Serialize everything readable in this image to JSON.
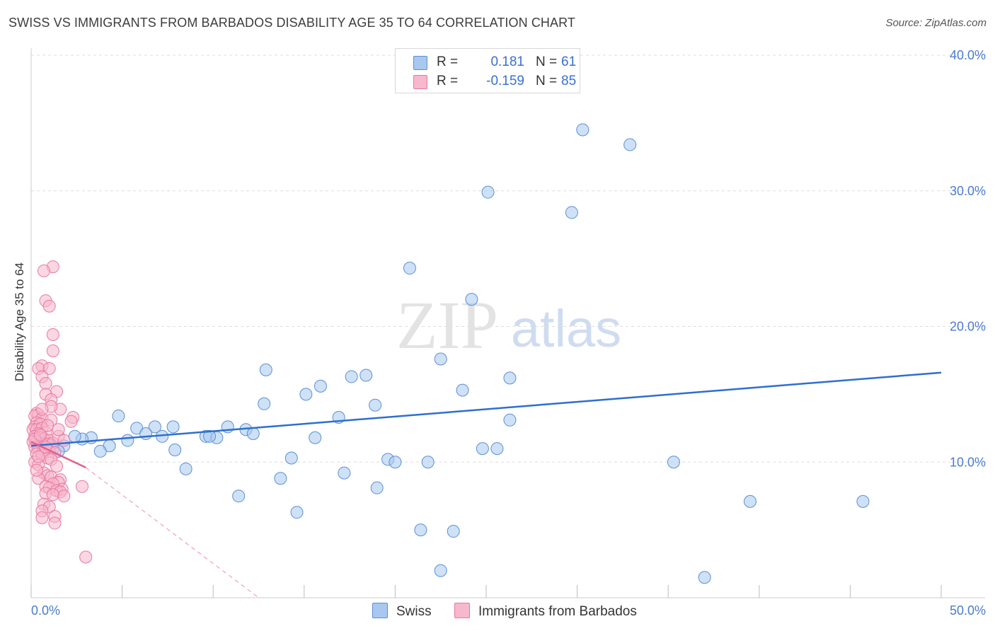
{
  "title": "SWISS VS IMMIGRANTS FROM BARBADOS DISABILITY AGE 35 TO 64 CORRELATION CHART",
  "source": "Source: ZipAtlas.com",
  "watermark": {
    "zip": "ZIP",
    "atlas": "atlas"
  },
  "colors": {
    "swiss_fill": "#a8c8f0",
    "swiss_stroke": "#5b8fd6",
    "swiss_line": "#2e6fce",
    "barbados_fill": "#f7b7cc",
    "barbados_stroke": "#e77aa0",
    "barbados_line": "#e0608c",
    "grid": "#dddddd",
    "tick_text": "#4a7bd0"
  },
  "legend": {
    "rows": [
      {
        "r_label": "R =",
        "r_value": "0.181",
        "n_label": "N =",
        "n_value": "61",
        "swatch": "#a8c8f0",
        "swatch_border": "#5b8fd6"
      },
      {
        "r_label": "R =",
        "r_value": "-0.159",
        "n_label": "N =",
        "n_value": "85",
        "swatch": "#f7b7cc",
        "swatch_border": "#e77aa0"
      }
    ]
  },
  "bottom_legend": [
    {
      "label": "Swiss",
      "swatch": "#a8c8f0",
      "swatch_border": "#5b8fd6"
    },
    {
      "label": "Immigrants from Barbados",
      "swatch": "#f7b7cc",
      "swatch_border": "#e77aa0"
    }
  ],
  "chart_data": {
    "type": "scatter",
    "title": "SWISS VS IMMIGRANTS FROM BARBADOS DISABILITY AGE 35 TO 64 CORRELATION CHART",
    "xlabel": "",
    "ylabel": "Disability Age 35 to 64",
    "xlim": [
      0,
      50
    ],
    "ylim": [
      0,
      40
    ],
    "x_tick_labels": [
      "0.0%",
      "50.0%"
    ],
    "y_ticks": [
      10,
      20,
      30,
      40
    ],
    "y_tick_labels": [
      "10.0%",
      "20.0%",
      "30.0%",
      "40.0%"
    ],
    "legend_position": "top-center",
    "series": [
      {
        "name": "Swiss",
        "r": 0.181,
        "n": 61,
        "trend": {
          "x": [
            0,
            50
          ],
          "y": [
            11.2,
            16.6
          ]
        },
        "points": [
          [
            30.3,
            34.5
          ],
          [
            32.9,
            33.4
          ],
          [
            25.1,
            29.9
          ],
          [
            29.7,
            28.4
          ],
          [
            20.8,
            24.3
          ],
          [
            24.2,
            22.0
          ],
          [
            12.9,
            16.8
          ],
          [
            17.6,
            16.3
          ],
          [
            18.4,
            16.4
          ],
          [
            22.5,
            17.6
          ],
          [
            26.3,
            16.2
          ],
          [
            15.9,
            15.6
          ],
          [
            15.1,
            15.0
          ],
          [
            23.7,
            15.3
          ],
          [
            12.8,
            14.3
          ],
          [
            18.9,
            14.2
          ],
          [
            4.8,
            13.4
          ],
          [
            16.9,
            13.3
          ],
          [
            26.3,
            13.1
          ],
          [
            7.8,
            12.6
          ],
          [
            6.8,
            12.6
          ],
          [
            5.8,
            12.5
          ],
          [
            10.8,
            12.6
          ],
          [
            11.8,
            12.4
          ],
          [
            12.2,
            12.1
          ],
          [
            6.3,
            12.1
          ],
          [
            9.6,
            11.9
          ],
          [
            10.2,
            11.8
          ],
          [
            9.8,
            11.9
          ],
          [
            3.3,
            11.8
          ],
          [
            15.6,
            11.8
          ],
          [
            7.2,
            11.9
          ],
          [
            2.8,
            11.7
          ],
          [
            5.3,
            11.6
          ],
          [
            4.3,
            11.2
          ],
          [
            3.8,
            10.8
          ],
          [
            7.9,
            10.9
          ],
          [
            24.8,
            11.0
          ],
          [
            25.6,
            11.0
          ],
          [
            14.3,
            10.3
          ],
          [
            19.6,
            10.2
          ],
          [
            20.0,
            10.0
          ],
          [
            21.8,
            10.0
          ],
          [
            35.3,
            10.0
          ],
          [
            8.5,
            9.5
          ],
          [
            17.2,
            9.2
          ],
          [
            13.7,
            8.8
          ],
          [
            19.0,
            8.1
          ],
          [
            11.4,
            7.5
          ],
          [
            14.6,
            6.3
          ],
          [
            39.5,
            7.1
          ],
          [
            45.7,
            7.1
          ],
          [
            21.4,
            5.0
          ],
          [
            23.2,
            4.9
          ],
          [
            22.5,
            2.0
          ],
          [
            37.0,
            1.5
          ],
          [
            1.2,
            11.0
          ],
          [
            2.4,
            11.9
          ],
          [
            1.8,
            11.2
          ],
          [
            0.9,
            11.4
          ],
          [
            1.5,
            10.8
          ]
        ]
      },
      {
        "name": "Immigrants from Barbados",
        "r": -0.159,
        "n": 85,
        "trend": {
          "x": [
            0,
            3.0
          ],
          "y": [
            11.5,
            9.6
          ]
        },
        "trend_dashed": {
          "x": [
            3.0,
            12.5
          ],
          "y": [
            9.6,
            0.0
          ]
        },
        "points": [
          [
            1.2,
            24.4
          ],
          [
            0.7,
            24.1
          ],
          [
            0.8,
            21.9
          ],
          [
            1.0,
            21.5
          ],
          [
            1.2,
            19.4
          ],
          [
            1.2,
            18.2
          ],
          [
            0.6,
            17.1
          ],
          [
            0.4,
            16.9
          ],
          [
            1.0,
            16.9
          ],
          [
            0.6,
            16.3
          ],
          [
            0.8,
            15.8
          ],
          [
            1.4,
            15.2
          ],
          [
            0.8,
            15.0
          ],
          [
            1.1,
            14.6
          ],
          [
            1.6,
            13.9
          ],
          [
            0.3,
            13.6
          ],
          [
            0.4,
            13.5
          ],
          [
            0.2,
            13.4
          ],
          [
            2.3,
            13.3
          ],
          [
            2.2,
            13.0
          ],
          [
            0.6,
            13.2
          ],
          [
            1.1,
            13.1
          ],
          [
            0.3,
            12.9
          ],
          [
            0.2,
            12.6
          ],
          [
            0.5,
            12.8
          ],
          [
            0.1,
            12.4
          ],
          [
            0.3,
            12.4
          ],
          [
            0.6,
            12.5
          ],
          [
            0.8,
            12.2
          ],
          [
            0.4,
            12.1
          ],
          [
            0.2,
            11.9
          ],
          [
            0.5,
            11.8
          ],
          [
            0.7,
            11.7
          ],
          [
            1.0,
            11.6
          ],
          [
            0.1,
            11.5
          ],
          [
            0.3,
            11.5
          ],
          [
            0.6,
            11.3
          ],
          [
            0.9,
            11.3
          ],
          [
            1.2,
            11.4
          ],
          [
            0.2,
            11.1
          ],
          [
            0.4,
            11.0
          ],
          [
            0.7,
            10.9
          ],
          [
            1.0,
            10.8
          ],
          [
            1.3,
            10.7
          ],
          [
            0.3,
            10.6
          ],
          [
            0.6,
            10.5
          ],
          [
            0.9,
            10.3
          ],
          [
            1.1,
            10.2
          ],
          [
            0.2,
            10.0
          ],
          [
            0.4,
            9.8
          ],
          [
            1.4,
            9.7
          ],
          [
            0.7,
            9.2
          ],
          [
            0.9,
            9.0
          ],
          [
            1.1,
            8.9
          ],
          [
            0.4,
            8.8
          ],
          [
            1.6,
            8.7
          ],
          [
            1.5,
            8.5
          ],
          [
            1.2,
            8.4
          ],
          [
            0.8,
            8.2
          ],
          [
            1.0,
            8.1
          ],
          [
            1.7,
            8.0
          ],
          [
            1.4,
            7.9
          ],
          [
            1.6,
            7.8
          ],
          [
            0.8,
            7.7
          ],
          [
            1.2,
            7.6
          ],
          [
            1.8,
            7.5
          ],
          [
            2.8,
            8.2
          ],
          [
            0.7,
            6.9
          ],
          [
            1.0,
            6.7
          ],
          [
            0.6,
            6.4
          ],
          [
            1.3,
            6.0
          ],
          [
            0.6,
            5.9
          ],
          [
            1.3,
            5.5
          ],
          [
            3.0,
            3.0
          ],
          [
            0.2,
            11.7
          ],
          [
            0.5,
            12.0
          ],
          [
            0.8,
            11.1
          ],
          [
            1.5,
            11.9
          ],
          [
            0.4,
            10.4
          ],
          [
            0.9,
            12.7
          ],
          [
            1.8,
            11.6
          ],
          [
            0.3,
            9.4
          ],
          [
            1.1,
            14.1
          ],
          [
            0.6,
            13.9
          ],
          [
            1.5,
            12.4
          ]
        ]
      }
    ]
  }
}
